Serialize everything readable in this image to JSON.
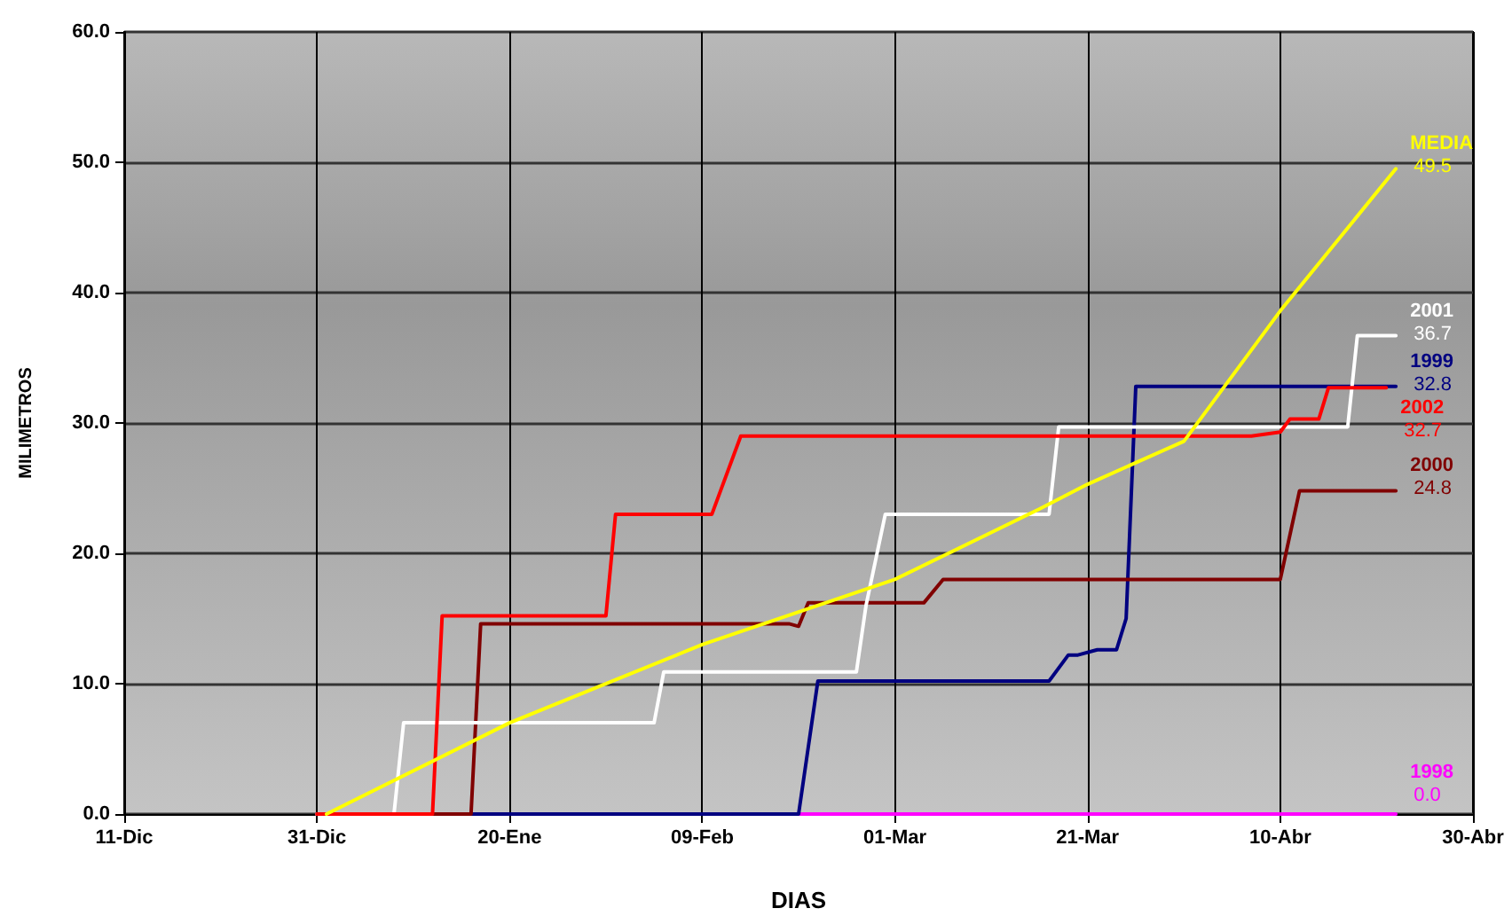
{
  "chart_data": {
    "type": "line",
    "xlabel": "DIAS",
    "ylabel": "MILIMETROS",
    "xlim": [
      "2001-12-11",
      "2002-04-30"
    ],
    "xticks": [
      {
        "value": "2001-12-11",
        "label": "11-Dic"
      },
      {
        "value": "2001-12-31",
        "label": "31-Dic"
      },
      {
        "value": "2002-01-20",
        "label": "20-Ene"
      },
      {
        "value": "2002-02-09",
        "label": "09-Feb"
      },
      {
        "value": "2002-03-01",
        "label": "01-Mar"
      },
      {
        "value": "2002-03-21",
        "label": "21-Mar"
      },
      {
        "value": "2002-04-10",
        "label": "10-Abr"
      },
      {
        "value": "2002-04-30",
        "label": "30-Abr"
      }
    ],
    "ylim": [
      0,
      60
    ],
    "yticks": [
      {
        "value": 0,
        "label": "0.0"
      },
      {
        "value": 10,
        "label": "10.0"
      },
      {
        "value": 20,
        "label": "20.0"
      },
      {
        "value": 30,
        "label": "30.0"
      },
      {
        "value": 40,
        "label": "40.0"
      },
      {
        "value": 50,
        "label": "50.0"
      },
      {
        "value": 60,
        "label": "60.0"
      }
    ],
    "grid": true,
    "legend": false,
    "marker": "none",
    "line_style": "solid",
    "series": [
      {
        "name": "1998",
        "color": "#ff00ff",
        "x": [
          "2001-12-31",
          "2002-04-22"
        ],
        "values": [
          0,
          0
        ],
        "value_labels": [
          null,
          "0.0"
        ]
      },
      {
        "name": "1999",
        "color": "#000080",
        "x": [
          "2001-12-31",
          "2002-02-19",
          "2002-02-21",
          "2002-03-17",
          "2002-03-19",
          "2002-03-20",
          "2002-03-22",
          "2002-03-24",
          "2002-03-25",
          "2002-03-26",
          "2002-04-22"
        ],
        "values": [
          0,
          0,
          10.2,
          10.2,
          12.2,
          12.2,
          12.6,
          12.6,
          15,
          32.8,
          32.8
        ],
        "value_labels": [
          null,
          null,
          null,
          null,
          null,
          null,
          null,
          null,
          null,
          null,
          "32.8"
        ]
      },
      {
        "name": "2000",
        "color": "#800000",
        "x": [
          "2001-12-31",
          "2002-01-16",
          "2002-01-17",
          "2002-02-18",
          "2002-02-19",
          "2002-02-20",
          "2002-03-04",
          "2002-03-06",
          "2002-04-10",
          "2002-04-12",
          "2002-04-22"
        ],
        "values": [
          0,
          0,
          14.6,
          14.6,
          14.4,
          16.2,
          16.2,
          18,
          18,
          24.8,
          24.8
        ],
        "value_labels": [
          null,
          null,
          null,
          null,
          null,
          null,
          null,
          null,
          null,
          null,
          "24.8"
        ]
      },
      {
        "name": "2001",
        "color": "#ffffff",
        "x": [
          "2001-12-31",
          "2002-01-08",
          "2002-01-09",
          "2002-02-04",
          "2002-02-05",
          "2002-02-25",
          "2002-02-26",
          "2002-02-28",
          "2002-03-17",
          "2002-03-18",
          "2002-04-17",
          "2002-04-18",
          "2002-04-22"
        ],
        "values": [
          0,
          0,
          7,
          7,
          10.9,
          10.9,
          16,
          23,
          23,
          29.7,
          29.7,
          36.7,
          36.7
        ],
        "value_labels": [
          null,
          null,
          null,
          null,
          null,
          null,
          null,
          null,
          null,
          null,
          null,
          null,
          "36.7"
        ]
      },
      {
        "name": "2002",
        "color": "#ff0000",
        "x": [
          "2001-12-31",
          "2002-01-12",
          "2002-01-13",
          "2002-01-30",
          "2002-01-31",
          "2002-02-10",
          "2002-02-13",
          "2002-04-07",
          "2002-04-10",
          "2002-04-11",
          "2002-04-14",
          "2002-04-15",
          "2002-04-21"
        ],
        "values": [
          0,
          0,
          15.2,
          15.2,
          23,
          23,
          29,
          29,
          29.3,
          30.3,
          30.3,
          32.7,
          32.7
        ],
        "value_labels": [
          null,
          null,
          null,
          null,
          null,
          null,
          null,
          null,
          null,
          null,
          null,
          null,
          "32.7"
        ]
      },
      {
        "name": "MEDIA",
        "color": "#ffff00",
        "x": [
          "2002-01-01",
          "2002-01-20",
          "2002-02-09",
          "2002-03-01",
          "2002-03-16",
          "2002-03-21",
          "2002-03-31",
          "2002-04-10",
          "2002-04-22"
        ],
        "values": [
          0,
          7,
          13,
          18,
          23.4,
          25.3,
          28.6,
          38.6,
          49.5
        ],
        "value_labels": [
          null,
          null,
          null,
          null,
          null,
          null,
          null,
          null,
          "49.5"
        ]
      }
    ]
  }
}
